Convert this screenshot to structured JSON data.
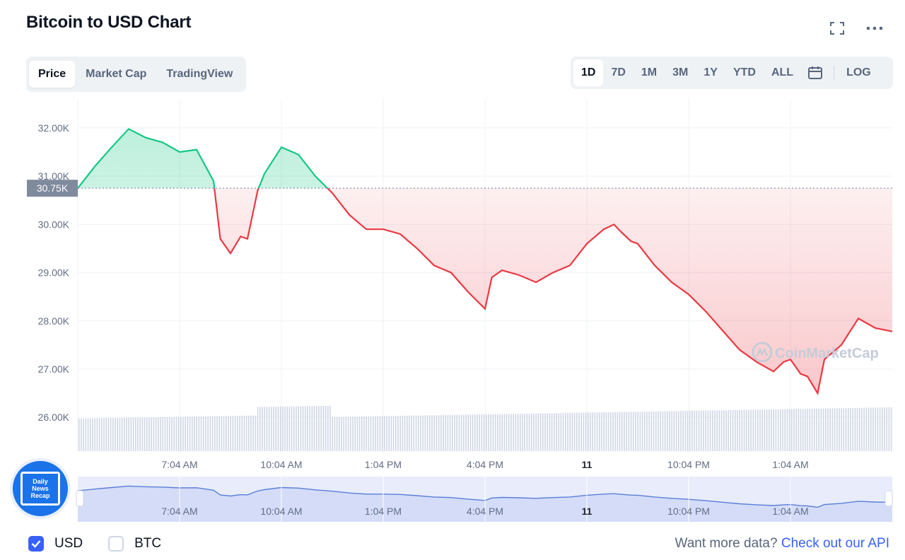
{
  "title": "Bitcoin to USD Chart",
  "tabs": [
    {
      "label": "Price",
      "active": true
    },
    {
      "label": "Market Cap",
      "active": false
    },
    {
      "label": "TradingView",
      "active": false
    }
  ],
  "ranges": [
    {
      "label": "1D",
      "active": true
    },
    {
      "label": "7D",
      "active": false
    },
    {
      "label": "1M",
      "active": false
    },
    {
      "label": "3M",
      "active": false
    },
    {
      "label": "1Y",
      "active": false
    },
    {
      "label": "YTD",
      "active": false
    },
    {
      "label": "ALL",
      "active": false
    }
  ],
  "log_label": "LOG",
  "icons": {
    "fullscreen": "fullscreen-icon",
    "more": "more-icon",
    "calendar": "calendar-icon"
  },
  "colors": {
    "up": "#16c784",
    "down": "#ea3943",
    "accent": "#3861fb"
  },
  "chart_data": {
    "type": "area",
    "y_ticks": [
      "32.00K",
      "31.00K",
      "30.00K",
      "29.00K",
      "28.00K",
      "27.00K",
      "26.00K"
    ],
    "y_tick_values": [
      32000,
      31000,
      30000,
      29000,
      28000,
      27000,
      26000
    ],
    "ylim": [
      25300,
      32600
    ],
    "baseline_value": 30750,
    "baseline_label": "30.75K",
    "x_ticks": [
      {
        "label": "7:04 AM",
        "bold": false
      },
      {
        "label": "10:04 AM",
        "bold": false
      },
      {
        "label": "1:04 PM",
        "bold": false
      },
      {
        "label": "4:04 PM",
        "bold": false
      },
      {
        "label": "11",
        "bold": true
      },
      {
        "label": "10:04 PM",
        "bold": false
      },
      {
        "label": "1:04 AM",
        "bold": false
      }
    ],
    "x_tick_hours": [
      3,
      6,
      9,
      12,
      15,
      18,
      21
    ],
    "series": [
      {
        "x": [
          0,
          0.5,
          1,
          1.5,
          2,
          2.5,
          3,
          3.5,
          4,
          4.2,
          4.5,
          4.8,
          5,
          5.3,
          5.5,
          6,
          6.5,
          7,
          7.5,
          8,
          8.5,
          9,
          9.5,
          10,
          10.5,
          11,
          11.5,
          12,
          12.2,
          12.5,
          13,
          13.5,
          14,
          14.5,
          15,
          15.5,
          15.8,
          16,
          16.3,
          16.5,
          17,
          17.5,
          18,
          18.5,
          19,
          19.5,
          20,
          20.5,
          20.8,
          21,
          21.3,
          21.5,
          21.8,
          22,
          22.5,
          23,
          23.5,
          24
        ],
        "y": [
          30750,
          31200,
          31600,
          31980,
          31800,
          31700,
          31500,
          31550,
          30900,
          29700,
          29400,
          29750,
          29700,
          30700,
          31050,
          31600,
          31450,
          31000,
          30650,
          30200,
          29900,
          29900,
          29800,
          29500,
          29150,
          29000,
          28600,
          28250,
          28900,
          29050,
          28950,
          28800,
          29000,
          29150,
          29600,
          29900,
          30000,
          29850,
          29650,
          29600,
          29150,
          28800,
          28550,
          28200,
          27800,
          27400,
          27150,
          26950,
          27150,
          27200,
          26900,
          26850,
          26500,
          27200,
          27500,
          28050,
          27850,
          27780
        ]
      }
    ],
    "volume_label": "Vol"
  },
  "navigator_ticks": [
    "7:04 AM",
    "10:04 AM",
    "1:04 PM",
    "4:04 PM",
    "11",
    "10:04 PM",
    "1:04 AM"
  ],
  "watermark": "CoinMarketCap",
  "badge": {
    "line1": "Daily",
    "line2": "News",
    "line3": "Recap"
  },
  "currency": [
    {
      "label": "USD",
      "checked": true
    },
    {
      "label": "BTC",
      "checked": false
    }
  ],
  "api": {
    "text": "Want more data?",
    "link": "Check out our API"
  }
}
